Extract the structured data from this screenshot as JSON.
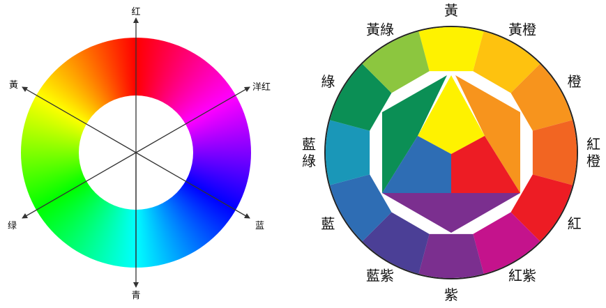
{
  "left_wheel": {
    "axis_labels": {
      "top": "红",
      "top_right": "洋红",
      "bottom_right": "蓝",
      "bottom": "青",
      "bottom_left": "绿",
      "top_left": "黃"
    },
    "hue_stops": [
      "#ff0000",
      "#ff00ff",
      "#0000ff",
      "#00ffff",
      "#00ff00",
      "#ffff00",
      "#ff0000"
    ]
  },
  "right_wheel": {
    "segments": [
      {
        "label": "黃",
        "color": "#fef200"
      },
      {
        "label": "黃橙",
        "color": "#fec20f"
      },
      {
        "label": "橙",
        "color": "#f7941d"
      },
      {
        "label": "紅橙",
        "color": "#f26522"
      },
      {
        "label": "紅",
        "color": "#ed1c24"
      },
      {
        "label": "紅紫",
        "color": "#c4138c"
      },
      {
        "label": "紫",
        "color": "#7b2f8f"
      },
      {
        "label": "藍紫",
        "color": "#4b3f96"
      },
      {
        "label": "藍",
        "color": "#2e6db4"
      },
      {
        "label": "藍綠",
        "color": "#1a97b8"
      },
      {
        "label": "綠",
        "color": "#0b8f55"
      },
      {
        "label": "黃綠",
        "color": "#8cc63f"
      }
    ],
    "center": {
      "primaries": {
        "yellow": "#fef200",
        "red": "#ed1c24",
        "blue": "#2e6db4"
      },
      "secondaries": {
        "orange": "#f7941d",
        "violet": "#7b2f8f",
        "green": "#0b8f55"
      }
    }
  }
}
